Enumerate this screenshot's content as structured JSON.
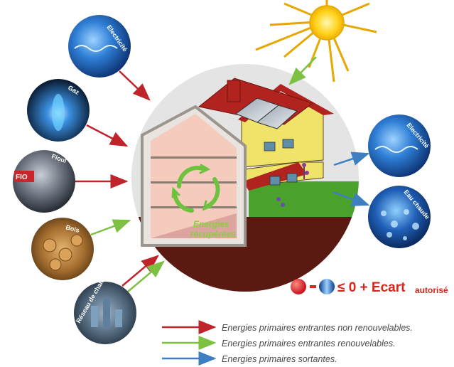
{
  "sources": {
    "electricite_in": "Electricité",
    "gaz": "Gaz",
    "fioul": "Fioul",
    "bois": "Bois",
    "reseau_chaleur": "Réseau de chaleur",
    "electricite_out": "Electricité",
    "eau_chaude": "Eau chaude"
  },
  "house": {
    "recovered_line1": "Energies",
    "recovered_line2": "récupérées"
  },
  "formula": {
    "main": "≤ 0 + Ecart",
    "suffix": "autorisé"
  },
  "legend": [
    {
      "label": "Energies primaires entrantes non renouvelables.",
      "color": "#c0242b"
    },
    {
      "label": "Energies primaires entrantes renouvelables.",
      "color": "#7cc142"
    },
    {
      "label": "Energies primaires sortantes.",
      "color": "#3d7fc1"
    }
  ]
}
